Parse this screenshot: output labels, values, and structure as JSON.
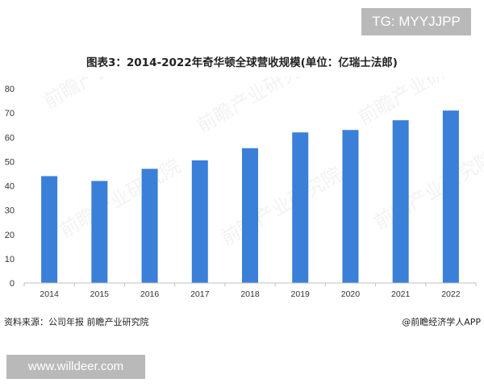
{
  "overlay": {
    "top_tag": "TG: MYYJJPP",
    "bottom_tag": "www.willdeer.com"
  },
  "figure": {
    "title": "图表3：2014-2022年奇华顿全球营收规模(单位：亿瑞士法郎)",
    "source": "资料来源：公司年报 前瞻产业研究院",
    "credit": "@前瞻经济学人APP",
    "watermark": "前瞻产业研究院"
  },
  "colors": {
    "bar": "#3a7fd8",
    "axis_text": "#333333",
    "axis_line": "#bfbfbf"
  },
  "chart_data": {
    "type": "bar",
    "title": "图表3：2014-2022年奇华顿全球营收规模(单位：亿瑞士法郎)",
    "categories": [
      "2014",
      "2015",
      "2016",
      "2017",
      "2018",
      "2019",
      "2020",
      "2021",
      "2022"
    ],
    "values": [
      44.0,
      42.0,
      47.0,
      50.5,
      55.5,
      62.0,
      63.0,
      67.0,
      71.0
    ],
    "yticks": [
      0,
      10,
      20,
      30,
      40,
      50,
      60,
      70,
      80
    ],
    "ylim": [
      0,
      80
    ],
    "xlabel": "",
    "ylabel": "",
    "grid": false,
    "legend": "none"
  }
}
